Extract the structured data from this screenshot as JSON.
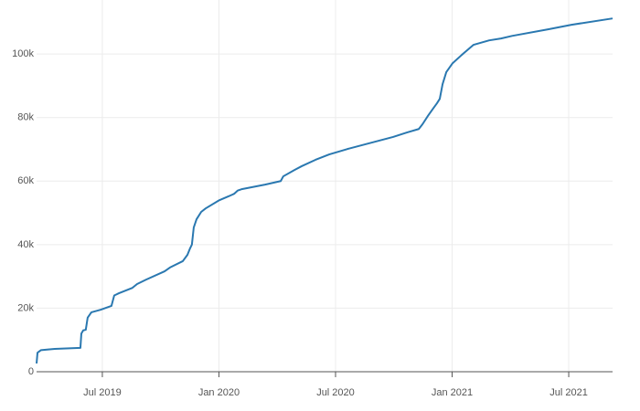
{
  "chart_data": {
    "type": "line",
    "color": "#2a78b0",
    "grid": true,
    "xlim": [
      2019.218,
      2021.688
    ],
    "ylim": [
      0,
      117000
    ],
    "xticks": [
      {
        "value": 2019.5,
        "label": "Jul 2019"
      },
      {
        "value": 2020.0,
        "label": "Jan 2020"
      },
      {
        "value": 2020.5,
        "label": "Jul 2020"
      },
      {
        "value": 2021.0,
        "label": "Jan 2021"
      },
      {
        "value": 2021.5,
        "label": "Jul 2021"
      }
    ],
    "yticks": [
      0,
      {
        "value": 20000,
        "label": "20k"
      },
      {
        "value": 40000,
        "label": "40k"
      },
      {
        "value": 60000,
        "label": "60k"
      },
      {
        "value": 80000,
        "label": "80k"
      },
      {
        "value": 100000,
        "label": "100k"
      }
    ],
    "x": [
      2019.218,
      2019.222,
      2019.237,
      2019.296,
      2019.406,
      2019.41,
      2019.418,
      2019.429,
      2019.437,
      2019.453,
      2019.492,
      2019.539,
      2019.551,
      2019.571,
      2019.629,
      2019.649,
      2019.688,
      2019.767,
      2019.79,
      2019.845,
      2019.865,
      2019.876,
      2019.884,
      2019.892,
      2019.904,
      2019.924,
      2019.943,
      2020.002,
      2020.041,
      2020.065,
      2020.08,
      2020.1,
      2020.198,
      2020.265,
      2020.276,
      2020.324,
      2020.355,
      2020.414,
      2020.473,
      2020.551,
      2020.747,
      2020.806,
      2020.857,
      2020.873,
      2020.896,
      2020.92,
      2020.935,
      2020.947,
      2020.959,
      2020.975,
      2021.002,
      2021.041,
      2021.092,
      2021.159,
      2021.21,
      2021.257,
      2021.414,
      2021.512,
      2021.688
    ],
    "values": [
      2600,
      6000,
      6800,
      7200,
      7500,
      12000,
      13000,
      13200,
      17000,
      18700,
      19500,
      20700,
      24000,
      24700,
      26400,
      27600,
      29000,
      31600,
      32800,
      34800,
      36800,
      38800,
      40000,
      45400,
      48000,
      50300,
      51400,
      54000,
      55200,
      56000,
      57000,
      57500,
      58900,
      60000,
      61500,
      63500,
      64700,
      66700,
      68400,
      70100,
      73900,
      75300,
      76400,
      77900,
      80500,
      83000,
      84500,
      85900,
      90500,
      94300,
      97100,
      99700,
      102900,
      104300,
      104900,
      105700,
      107800,
      109200,
      111200
    ]
  }
}
